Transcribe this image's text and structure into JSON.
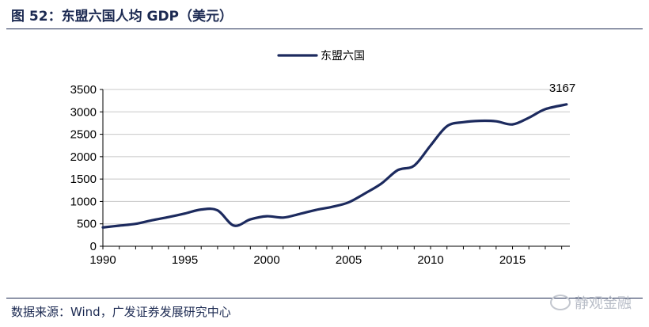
{
  "figure": {
    "title": "图 52：东盟六国人均 GDP（美元）",
    "source": "数据来源：Wind，广发证券发展研究中心",
    "watermark": "静观金融"
  },
  "chart_data": {
    "type": "line",
    "title": "",
    "xlabel": "",
    "ylabel": "",
    "xlim": [
      1990,
      2018.5
    ],
    "ylim": [
      0,
      3500
    ],
    "xticks": [
      1990,
      1995,
      2000,
      2005,
      2010,
      2015
    ],
    "yticks": [
      0,
      500,
      1000,
      1500,
      2000,
      2500,
      3000,
      3500
    ],
    "grid": "horizontal",
    "legend": "top-center",
    "series": [
      {
        "name": "东盟六国",
        "color": "#1c2a5e",
        "x": [
          1990,
          1991,
          1992,
          1993,
          1994,
          1995,
          1996,
          1997,
          1998,
          1999,
          2000,
          2001,
          2002,
          2003,
          2004,
          2005,
          2006,
          2007,
          2008,
          2009,
          2010,
          2011,
          2012,
          2013,
          2014,
          2015,
          2016,
          2017,
          2018.3
        ],
        "y": [
          420,
          460,
          500,
          580,
          650,
          730,
          820,
          800,
          460,
          600,
          670,
          640,
          720,
          810,
          880,
          980,
          1180,
          1400,
          1700,
          1800,
          2250,
          2680,
          2770,
          2800,
          2790,
          2720,
          2870,
          3060,
          3167
        ]
      }
    ],
    "annotations": [
      {
        "text": "3167",
        "x": 2018.3,
        "y": 3167
      }
    ]
  }
}
